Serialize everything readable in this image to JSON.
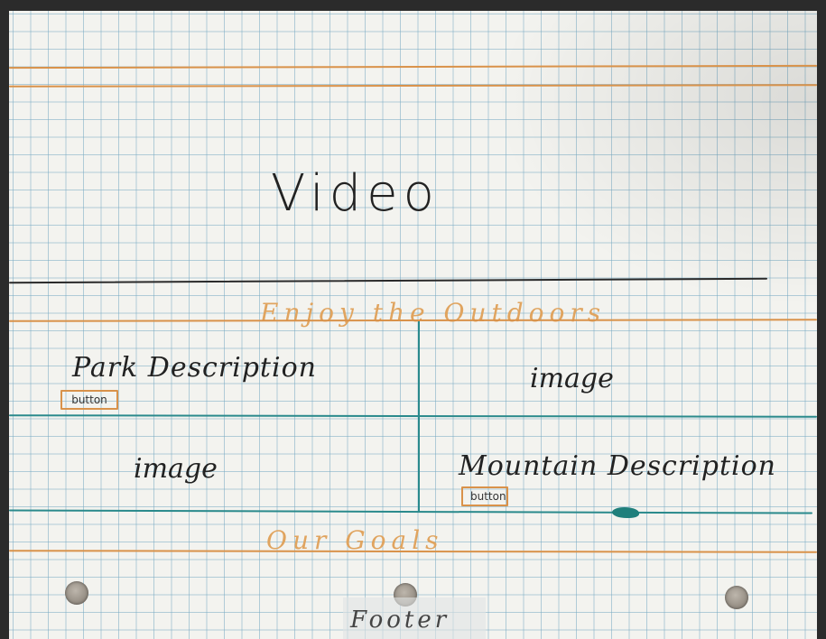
{
  "hero": {
    "label": "Video"
  },
  "sections": {
    "enjoy": "Enjoy the Outdoors",
    "goals": "Our Goals",
    "footer": "Footer"
  },
  "cards": {
    "park": {
      "title": "Park Description",
      "button": "button"
    },
    "park_image": "image",
    "mountain_image": "image",
    "mountain": {
      "title": "Mountain Description",
      "button": "button"
    }
  },
  "colors": {
    "paper": "#f3f3ef",
    "grid": "#78aac3",
    "orange_ink": "#d9924a",
    "teal_ink": "#2a8a8c",
    "black_ink": "#2a2a2a"
  }
}
